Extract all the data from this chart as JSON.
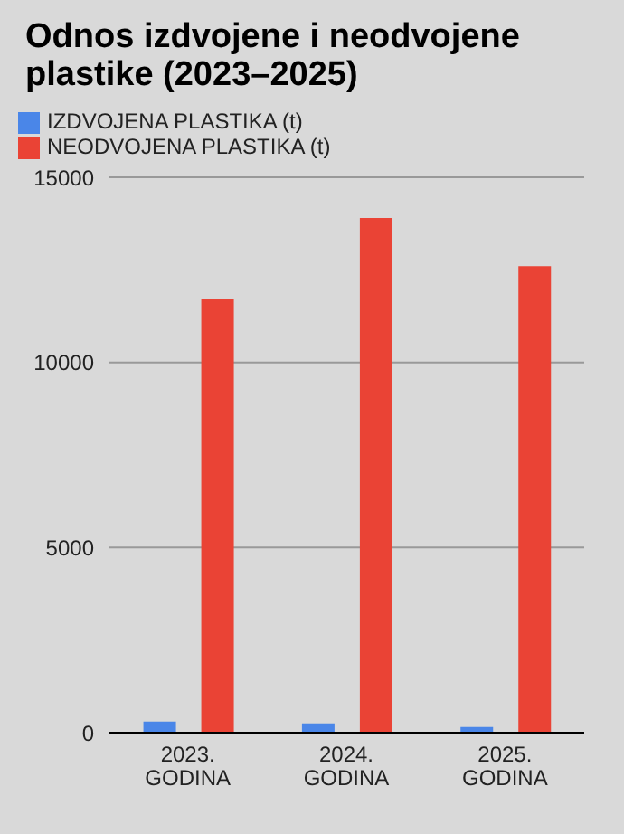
{
  "chart_data": {
    "type": "bar",
    "title": "Odnos izdvojene i neodvojene plastike (2023–2025)",
    "categories": [
      "2023. GODINA",
      "2024. GODINA",
      "2025. GODINA"
    ],
    "series": [
      {
        "name": "IZDVOJENA PLASTIKA (t)",
        "color": "#4a86e8",
        "values": [
          300,
          250,
          150
        ]
      },
      {
        "name": "NEODVOJENA PLASTIKA (t)",
        "color": "#ea4335",
        "values": [
          11700,
          13900,
          12600
        ]
      }
    ],
    "ylim": [
      0,
      15000
    ],
    "yticks": [
      0,
      5000,
      10000,
      15000
    ],
    "grid": "y",
    "legend": "top left"
  }
}
